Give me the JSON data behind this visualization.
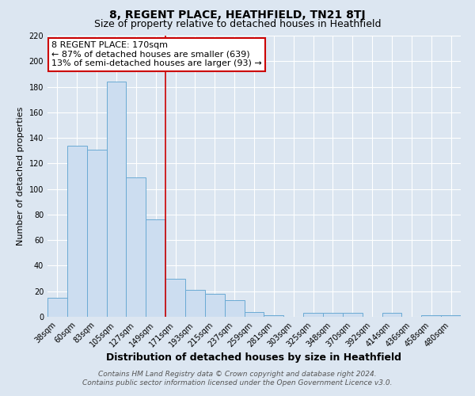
{
  "title": "8, REGENT PLACE, HEATHFIELD, TN21 8TJ",
  "subtitle": "Size of property relative to detached houses in Heathfield",
  "xlabel": "Distribution of detached houses by size in Heathfield",
  "ylabel": "Number of detached properties",
  "categories": [
    "38sqm",
    "60sqm",
    "83sqm",
    "105sqm",
    "127sqm",
    "149sqm",
    "171sqm",
    "193sqm",
    "215sqm",
    "237sqm",
    "259sqm",
    "281sqm",
    "303sqm",
    "325sqm",
    "348sqm",
    "370sqm",
    "392sqm",
    "414sqm",
    "436sqm",
    "458sqm",
    "480sqm"
  ],
  "values": [
    15,
    134,
    131,
    184,
    109,
    76,
    30,
    21,
    18,
    13,
    4,
    1,
    0,
    3,
    3,
    3,
    0,
    3,
    0,
    1,
    1
  ],
  "bar_color": "#ccddf0",
  "bar_edge_color": "#6aaad4",
  "red_line_index": 6,
  "red_line_color": "#cc0000",
  "annotation_line1": "8 REGENT PLACE: 170sqm",
  "annotation_line2": "← 87% of detached houses are smaller (639)",
  "annotation_line3": "13% of semi-detached houses are larger (93) →",
  "annotation_box_facecolor": "#ffffff",
  "annotation_box_edgecolor": "#cc0000",
  "ylim": [
    0,
    220
  ],
  "yticks": [
    0,
    20,
    40,
    60,
    80,
    100,
    120,
    140,
    160,
    180,
    200,
    220
  ],
  "footer1": "Contains HM Land Registry data © Crown copyright and database right 2024.",
  "footer2": "Contains public sector information licensed under the Open Government Licence v3.0.",
  "bg_color": "#dce6f1",
  "plot_bg_color": "#dce6f1",
  "grid_color": "#ffffff",
  "title_fontsize": 10,
  "subtitle_fontsize": 9,
  "xlabel_fontsize": 9,
  "ylabel_fontsize": 8,
  "tick_fontsize": 7,
  "annotation_fontsize": 8,
  "footer_fontsize": 6.5
}
